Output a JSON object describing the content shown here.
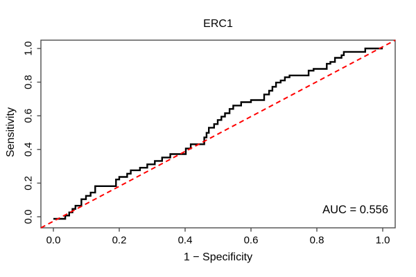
{
  "figure": {
    "title": "ERC1",
    "x_axis_label": "1 − Specificity",
    "y_axis_label": "Sensitivity",
    "auc_text": "AUC = 0.556"
  },
  "colors": {
    "background": "#ffffff",
    "curve": "#000000",
    "reference_line": "#ff0000",
    "axis": "#4d4d4d",
    "text": "#000000"
  },
  "chart_data": {
    "type": "line",
    "subtype": "roc-step-curve",
    "title": "ERC1",
    "xlabel": "1 − Specificity",
    "ylabel": "Sensitivity",
    "xlim": [
      -0.04,
      1.04
    ],
    "ylim": [
      -0.04,
      1.04
    ],
    "x_ticks": [
      0.0,
      0.2,
      0.4,
      0.6,
      0.8,
      1.0
    ],
    "y_ticks": [
      0.0,
      0.2,
      0.4,
      0.6,
      0.8,
      1.0
    ],
    "x_tick_labels": [
      "0.0",
      "0.2",
      "0.4",
      "0.6",
      "0.8",
      "1.0"
    ],
    "y_tick_labels": [
      "0.0",
      "0.2",
      "0.4",
      "0.6",
      "0.8",
      "1.0"
    ],
    "grid": false,
    "legend_position": "none",
    "auc": 0.556,
    "annotations": [
      {
        "text": "AUC = 0.556",
        "x": 0.98,
        "y": 0.04,
        "align": "right"
      }
    ],
    "series": [
      {
        "name": "ROC curve",
        "style": "step-solid",
        "color": "#000000",
        "line_width": 2.4,
        "points": [
          [
            0.0,
            0.0
          ],
          [
            0.036,
            0.0
          ],
          [
            0.036,
            0.019
          ],
          [
            0.048,
            0.019
          ],
          [
            0.048,
            0.038
          ],
          [
            0.058,
            0.038
          ],
          [
            0.058,
            0.058
          ],
          [
            0.067,
            0.058
          ],
          [
            0.067,
            0.077
          ],
          [
            0.085,
            0.077
          ],
          [
            0.085,
            0.115
          ],
          [
            0.099,
            0.115
          ],
          [
            0.099,
            0.135
          ],
          [
            0.113,
            0.135
          ],
          [
            0.113,
            0.154
          ],
          [
            0.127,
            0.154
          ],
          [
            0.127,
            0.192
          ],
          [
            0.19,
            0.192
          ],
          [
            0.19,
            0.231
          ],
          [
            0.2,
            0.231
          ],
          [
            0.2,
            0.246
          ],
          [
            0.224,
            0.246
          ],
          [
            0.224,
            0.265
          ],
          [
            0.235,
            0.265
          ],
          [
            0.235,
            0.285
          ],
          [
            0.263,
            0.285
          ],
          [
            0.263,
            0.3
          ],
          [
            0.285,
            0.3
          ],
          [
            0.285,
            0.32
          ],
          [
            0.308,
            0.32
          ],
          [
            0.308,
            0.34
          ],
          [
            0.33,
            0.34
          ],
          [
            0.33,
            0.36
          ],
          [
            0.355,
            0.36
          ],
          [
            0.355,
            0.38
          ],
          [
            0.402,
            0.38
          ],
          [
            0.402,
            0.413
          ],
          [
            0.417,
            0.413
          ],
          [
            0.417,
            0.438
          ],
          [
            0.458,
            0.438
          ],
          [
            0.458,
            0.478
          ],
          [
            0.465,
            0.478
          ],
          [
            0.465,
            0.505
          ],
          [
            0.472,
            0.505
          ],
          [
            0.472,
            0.535
          ],
          [
            0.488,
            0.535
          ],
          [
            0.488,
            0.556
          ],
          [
            0.499,
            0.556
          ],
          [
            0.499,
            0.58
          ],
          [
            0.51,
            0.58
          ],
          [
            0.51,
            0.6
          ],
          [
            0.521,
            0.6
          ],
          [
            0.521,
            0.62
          ],
          [
            0.535,
            0.62
          ],
          [
            0.535,
            0.645
          ],
          [
            0.546,
            0.645
          ],
          [
            0.546,
            0.665
          ],
          [
            0.57,
            0.665
          ],
          [
            0.57,
            0.685
          ],
          [
            0.6,
            0.685
          ],
          [
            0.6,
            0.697
          ],
          [
            0.64,
            0.697
          ],
          [
            0.64,
            0.73
          ],
          [
            0.655,
            0.73
          ],
          [
            0.655,
            0.752
          ],
          [
            0.665,
            0.752
          ],
          [
            0.665,
            0.775
          ],
          [
            0.676,
            0.775
          ],
          [
            0.676,
            0.8
          ],
          [
            0.69,
            0.8
          ],
          [
            0.69,
            0.812
          ],
          [
            0.703,
            0.812
          ],
          [
            0.703,
            0.831
          ],
          [
            0.717,
            0.831
          ],
          [
            0.717,
            0.842
          ],
          [
            0.775,
            0.842
          ],
          [
            0.775,
            0.87
          ],
          [
            0.79,
            0.87
          ],
          [
            0.79,
            0.88
          ],
          [
            0.83,
            0.88
          ],
          [
            0.83,
            0.91
          ],
          [
            0.841,
            0.91
          ],
          [
            0.841,
            0.921
          ],
          [
            0.855,
            0.921
          ],
          [
            0.855,
            0.945
          ],
          [
            0.875,
            0.945
          ],
          [
            0.875,
            0.96
          ],
          [
            0.882,
            0.96
          ],
          [
            0.882,
            0.98
          ],
          [
            0.947,
            0.98
          ],
          [
            0.947,
            1.0
          ],
          [
            1.0,
            1.0
          ]
        ]
      },
      {
        "name": "chance reference line",
        "style": "dashed",
        "color": "#ff0000",
        "line_width": 2,
        "points": [
          [
            0.0,
            0.0
          ],
          [
            1.0,
            1.0
          ]
        ]
      }
    ]
  }
}
